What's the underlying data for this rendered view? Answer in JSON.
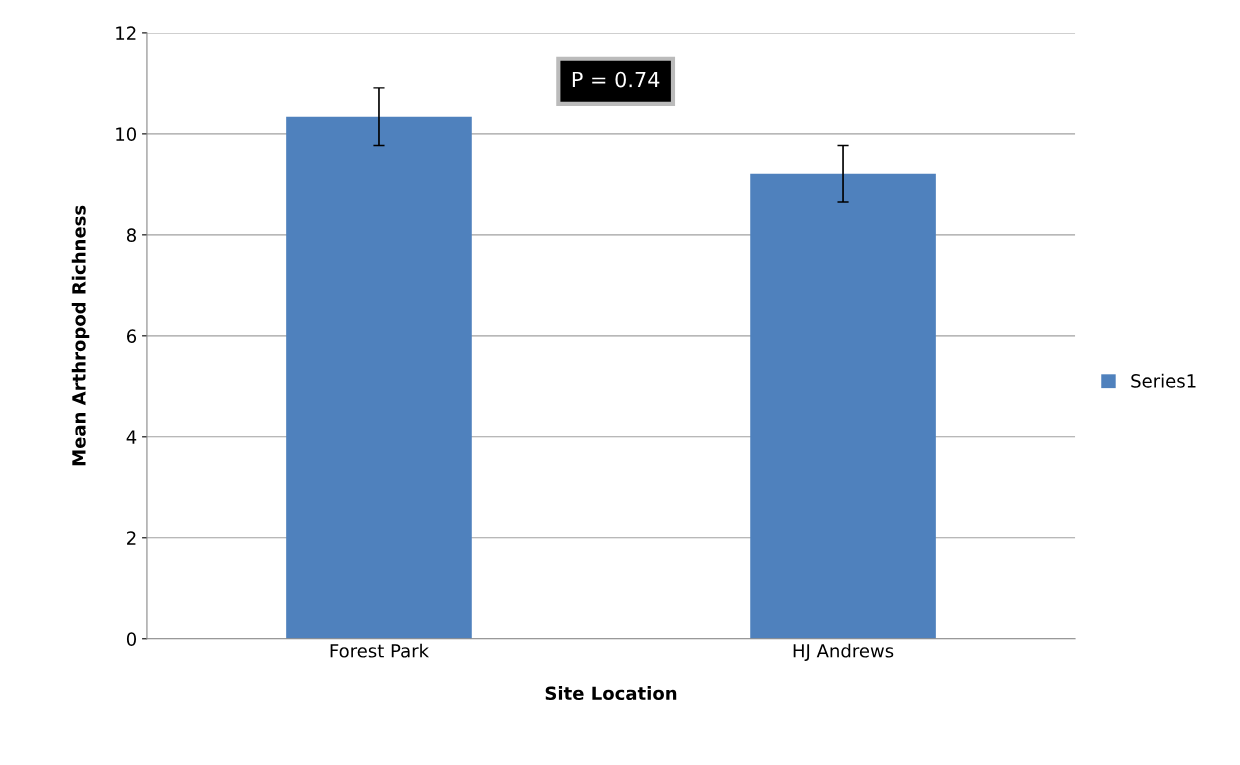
{
  "chart_data": {
    "type": "bar",
    "xlabel": "Site Location",
    "ylabel": "Mean Arthropod Richness",
    "categories": [
      "Forest Park",
      "HJ Andrews"
    ],
    "series": [
      {
        "name": "Series1",
        "color": "#4f81bd",
        "values": [
          10.34,
          9.21
        ],
        "errors": [
          0.57,
          0.56
        ]
      }
    ],
    "ylim": [
      0,
      12
    ],
    "yticks": [
      0,
      2,
      4,
      6,
      8,
      10,
      12
    ],
    "grid": "y",
    "legend": "right",
    "annotations": [
      "P = 0.74"
    ]
  }
}
